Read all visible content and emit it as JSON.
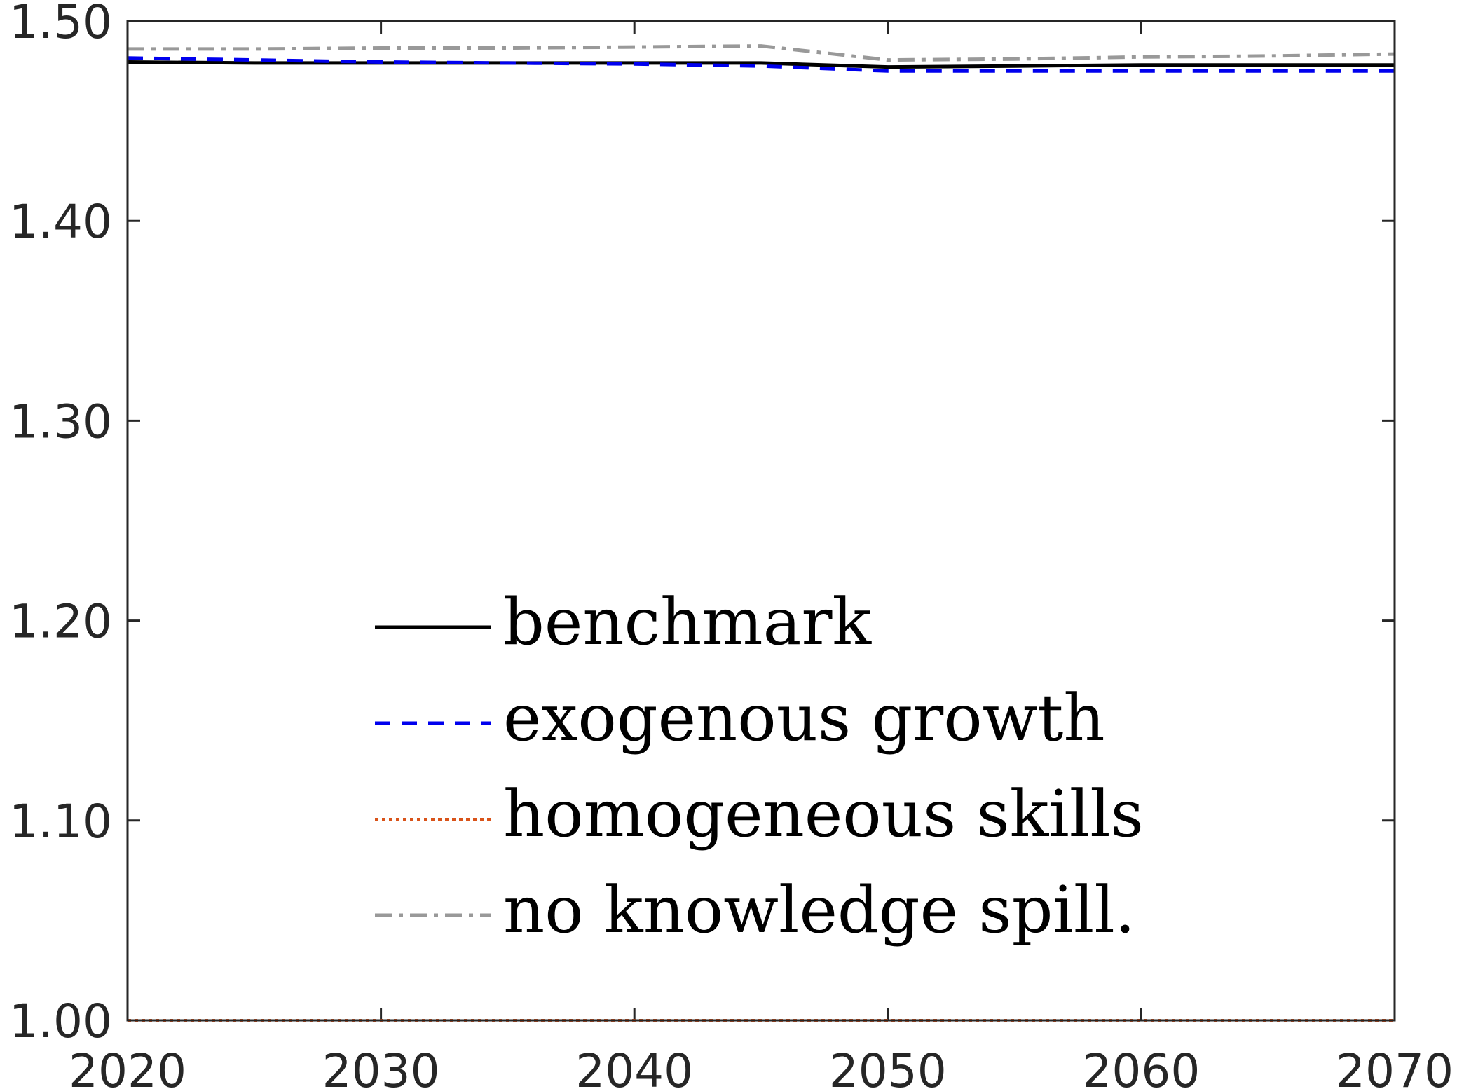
{
  "chart_data": {
    "type": "line",
    "title": "",
    "xlabel": "",
    "ylabel": "",
    "xlim": [
      2020,
      2070
    ],
    "ylim": [
      1.0,
      1.5
    ],
    "x_ticks": [
      "2020",
      "2030",
      "2040",
      "2050",
      "2060",
      "2070"
    ],
    "y_ticks": [
      "1.00",
      "1.10",
      "1.20",
      "1.30",
      "1.40",
      "1.50"
    ],
    "legend_position": "lower-center",
    "series": [
      {
        "name": "benchmark",
        "color": "#000000",
        "style": "solid",
        "x": [
          2020,
          2025,
          2030,
          2035,
          2040,
          2045,
          2050,
          2055,
          2060,
          2065,
          2070
        ],
        "y": [
          1.4795,
          1.479,
          1.479,
          1.479,
          1.479,
          1.479,
          1.477,
          1.4775,
          1.478,
          1.478,
          1.478
        ]
      },
      {
        "name": "exogenous growth",
        "color": "#0000ee",
        "style": "dashed",
        "x": [
          2020,
          2025,
          2030,
          2035,
          2040,
          2045,
          2050,
          2055,
          2060,
          2065,
          2070
        ],
        "y": [
          1.4815,
          1.4805,
          1.4795,
          1.479,
          1.4785,
          1.4775,
          1.475,
          1.475,
          1.475,
          1.475,
          1.475
        ]
      },
      {
        "name": "homogeneous skills",
        "color": "#d95319",
        "style": "dotted",
        "x": [
          2020,
          2030,
          2040,
          2050,
          2060,
          2070
        ],
        "y": [
          1.0,
          1.0,
          1.0,
          1.0,
          1.0,
          1.0
        ]
      },
      {
        "name": "no knowledge spill.",
        "color": "#999999",
        "style": "dashdot",
        "x": [
          2020,
          2025,
          2030,
          2035,
          2040,
          2045,
          2050,
          2055,
          2060,
          2065,
          2070
        ],
        "y": [
          1.486,
          1.486,
          1.4865,
          1.4865,
          1.487,
          1.4875,
          1.4805,
          1.481,
          1.482,
          1.4825,
          1.4835
        ]
      }
    ]
  }
}
